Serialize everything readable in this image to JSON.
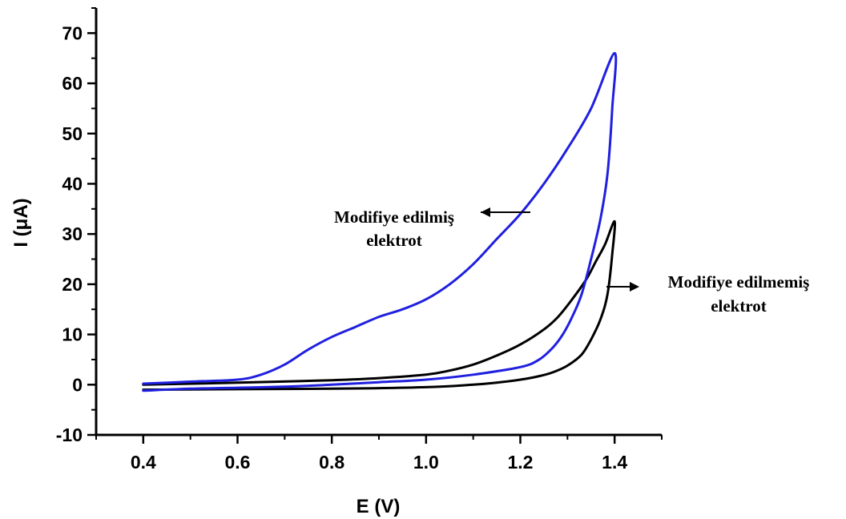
{
  "chart_data": {
    "type": "line",
    "xlabel": "E (V)",
    "ylabel": "I (μA)",
    "xlim": [
      0.3,
      1.5
    ],
    "ylim": [
      -10,
      75
    ],
    "x_ticks": [
      0.4,
      0.6,
      0.8,
      1.0,
      1.2,
      1.4
    ],
    "x_tick_labels": [
      "0.4",
      "0.6",
      "0.8",
      "1.0",
      "1.2",
      "1.4"
    ],
    "y_ticks": [
      -10,
      0,
      10,
      20,
      30,
      40,
      50,
      60,
      70
    ],
    "y_tick_labels": [
      "-10",
      "0",
      "10",
      "20",
      "30",
      "40",
      "50",
      "60",
      "70"
    ],
    "grid": false,
    "series": [
      {
        "color": "#1f1fe0",
        "x": [
          0.4,
          0.5,
          0.6,
          0.65,
          0.7,
          0.75,
          0.8,
          0.85,
          0.9,
          0.95,
          1.0,
          1.05,
          1.1,
          1.15,
          1.2,
          1.25,
          1.3,
          1.35,
          1.4,
          1.395,
          1.385,
          1.37,
          1.35,
          1.33,
          1.31,
          1.29,
          1.27,
          1.24,
          1.2,
          1.1,
          1.0,
          0.9,
          0.8,
          0.7,
          0.6,
          0.5,
          0.4
        ],
        "y": [
          0.2,
          0.6,
          1.0,
          2.0,
          4.0,
          7.0,
          9.5,
          11.5,
          13.5,
          15.0,
          17.0,
          20.0,
          24.0,
          29.0,
          34.0,
          40.0,
          47.0,
          55.0,
          66.0,
          55.0,
          42.0,
          33.0,
          25.0,
          18.0,
          13.5,
          10.0,
          7.5,
          5.0,
          3.5,
          2.0,
          1.0,
          0.5,
          0.0,
          -0.4,
          -0.6,
          -0.8,
          -1.2
        ]
      },
      {
        "color": "#000000",
        "x": [
          0.4,
          0.6,
          0.8,
          0.9,
          1.0,
          1.05,
          1.1,
          1.15,
          1.2,
          1.25,
          1.28,
          1.31,
          1.34,
          1.36,
          1.38,
          1.4,
          1.395,
          1.385,
          1.37,
          1.35,
          1.33,
          1.3,
          1.27,
          1.24,
          1.2,
          1.15,
          1.1,
          1.0,
          0.8,
          0.6,
          0.4
        ],
        "y": [
          0.0,
          0.4,
          0.9,
          1.3,
          2.0,
          2.8,
          4.0,
          5.8,
          8.0,
          11.0,
          13.5,
          17.0,
          21.0,
          24.5,
          28.0,
          32.5,
          26.0,
          18.0,
          13.0,
          9.0,
          6.0,
          3.8,
          2.5,
          1.7,
          1.0,
          0.4,
          0.0,
          -0.5,
          -0.8,
          -0.9,
          -1.0
        ]
      }
    ],
    "annotations": [
      {
        "id": "modified",
        "lines": [
          "Modifiye edilmiş",
          "elektrot"
        ]
      },
      {
        "id": "unmodified",
        "lines": [
          "Modifiye edilmemiş",
          "elektrot"
        ]
      }
    ]
  }
}
